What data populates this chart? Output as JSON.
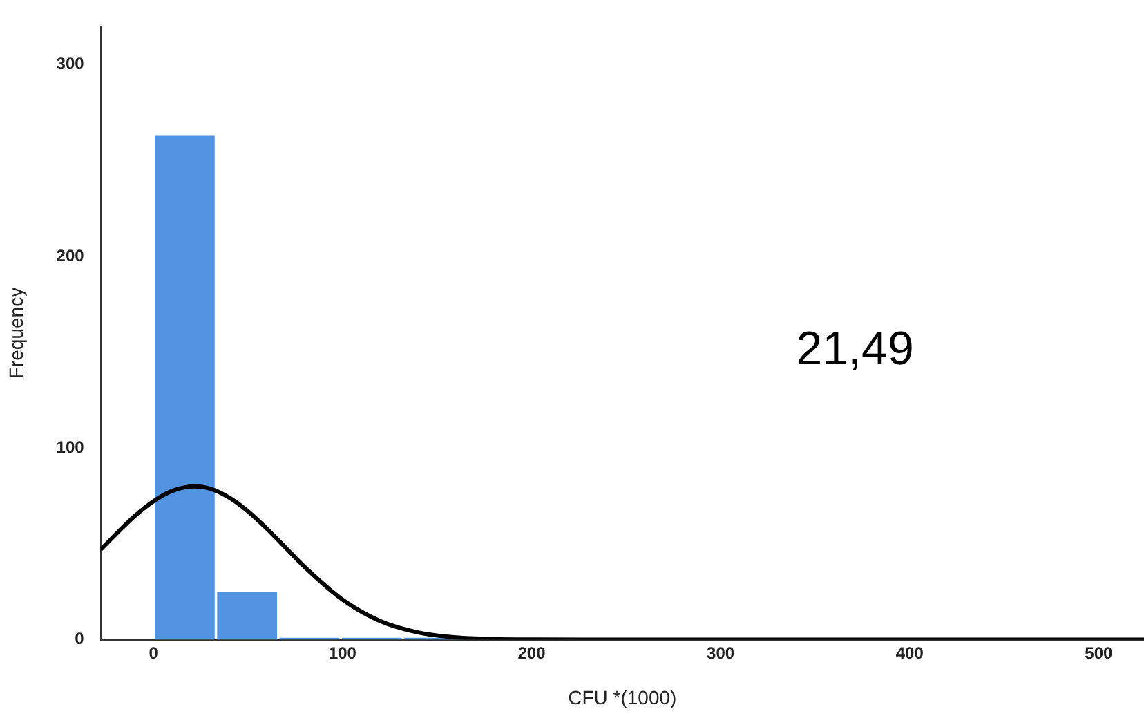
{
  "chart_data": {
    "type": "histogram",
    "xlabel": "CFU *(1000)",
    "ylabel": "Frequency",
    "bins": [
      0,
      33,
      66,
      99,
      132,
      165
    ],
    "values": [
      263,
      25,
      1,
      1,
      1
    ],
    "color": "#5294e2",
    "series": [
      {
        "type": "line",
        "color": "#000000",
        "x": [
          -28,
          -10,
          0,
          10,
          21.5,
          30,
          40,
          50,
          60,
          70,
          80,
          100,
          120,
          140,
          160,
          180,
          200,
          250,
          300,
          400,
          524
        ],
        "values": [
          47,
          64.5,
          72.3,
          77.7,
          80,
          78.8,
          74.2,
          67,
          57.9,
          47.9,
          37.9,
          20.9,
          9.7,
          3.8,
          1.2,
          0.3,
          0.1,
          0,
          0,
          0,
          0
        ]
      }
    ],
    "annotations": [
      "21,49"
    ],
    "xlim": [
      -28,
      524
    ],
    "xticks": [
      0,
      100,
      200,
      300,
      400,
      500
    ],
    "ylim": [
      0,
      320
    ],
    "yticks": [
      0,
      100,
      200,
      300
    ],
    "grid": false,
    "legend": false,
    "marker": "none",
    "line_style": "solid"
  }
}
